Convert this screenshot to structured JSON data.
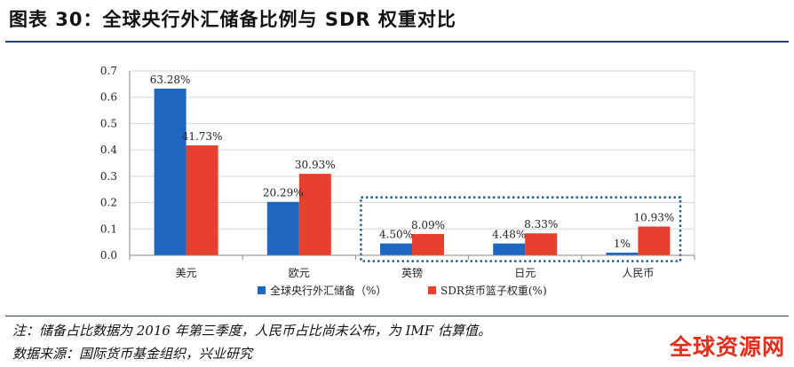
{
  "header": {
    "title": "图表 30：全球央行外汇储备比例与 SDR 权重对比"
  },
  "footer": {
    "note": "注：储备占比数据为 2016 年第三季度，人民币占比尚未公布，为 IMF 估算值。",
    "source": "数据来源：国际货币基金组织，兴业研究",
    "watermark": "全球资源网"
  },
  "colors": {
    "reserve": "#1f66c1",
    "sdr": "#e8402e",
    "highlight_box": "#1f5d86",
    "rule": "#243f7a"
  },
  "chart_data": {
    "type": "bar",
    "categories": [
      "美元",
      "欧元",
      "英镑",
      "日元",
      "人民币"
    ],
    "series": [
      {
        "name": "全球央行外汇储备（%）",
        "values": [
          0.6328,
          0.2029,
          0.045,
          0.0448,
          0.01
        ],
        "labels": [
          "63.28%",
          "20.29%",
          "4.50%",
          "4.48%",
          "1%"
        ]
      },
      {
        "name": "SDR货币篮子权重(%)",
        "values": [
          0.4173,
          0.3093,
          0.0809,
          0.0833,
          0.1093
        ],
        "labels": [
          "41.73%",
          "30.93%",
          "8.09%",
          "8.33%",
          "10.93%"
        ]
      }
    ],
    "ylim": [
      0,
      0.7
    ],
    "yticks": [
      "0.0",
      "0.1",
      "0.2",
      "0.3",
      "0.4",
      "0.5",
      "0.6",
      "0.7"
    ],
    "grid": true,
    "legend": "bottom",
    "highlight": {
      "categories": [
        "英镑",
        "日元",
        "人民币"
      ],
      "style": "dotted box"
    }
  }
}
